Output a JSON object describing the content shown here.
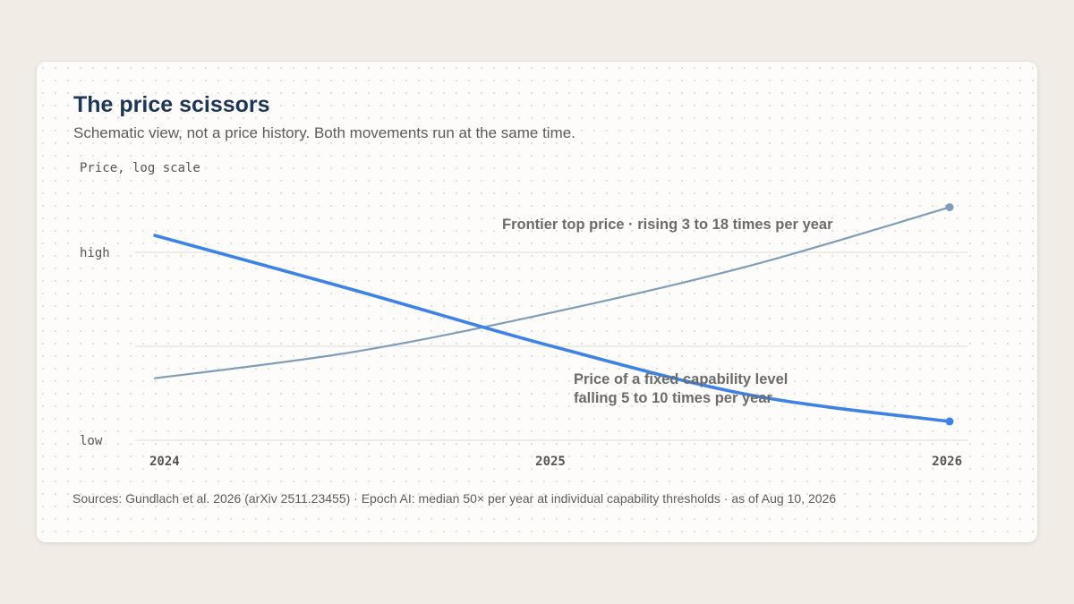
{
  "chart_data": {
    "type": "line",
    "title": "The price scissors",
    "subtitle": "Schematic view, not a price history. Both movements run at the same time.",
    "ylabel": "Price, log scale",
    "y_ticks": [
      "high",
      "low"
    ],
    "x_ticks": [
      "2024",
      "2025",
      "2026"
    ],
    "xlim": [
      2024,
      2026
    ],
    "ylim": [
      0,
      1
    ],
    "grid": true,
    "series": [
      {
        "name": "Frontier top price · rising 3 to 18 times per year",
        "color": "#7f9cb8",
        "x": [
          2024,
          2024.5,
          2025,
          2025.5,
          2026
        ],
        "y": [
          0.33,
          0.47,
          0.68,
          0.93,
          1.24
        ]
      },
      {
        "name": "Price of a fixed capability level falling 5 to 10 times per year",
        "label_lines": [
          "Price of a fixed capability level",
          "falling 5 to 10 times per year"
        ],
        "color": "#3d82e6",
        "x": [
          2024,
          2024.5,
          2025,
          2025.5,
          2026
        ],
        "y": [
          1.09,
          0.8,
          0.5,
          0.24,
          0.1
        ]
      }
    ],
    "source": "Sources: Gundlach et al. 2026 (arXiv 2511.23455) · Epoch AI: median 50× per year at individual capability thresholds · as of Aug 10, 2026"
  }
}
